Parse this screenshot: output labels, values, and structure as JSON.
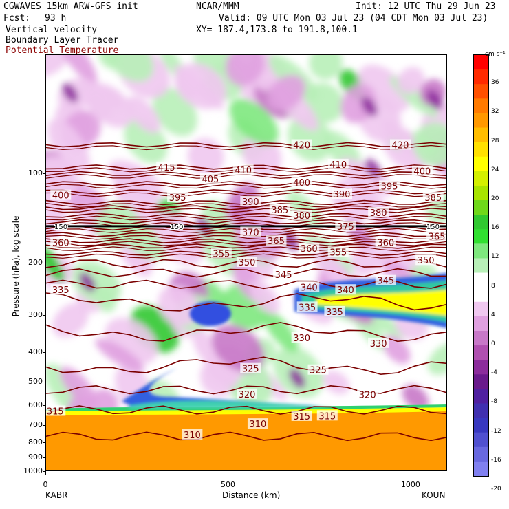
{
  "header": {
    "model": "CGWAVES 15km ARW-GFS init",
    "org": "NCAR/MMM",
    "init": "Init: 12 UTC Thu 29 Jun 23",
    "fcst_label": "Fcst:",
    "fcst_value": "93 h",
    "valid": "Valid: 09 UTC Mon 03 Jul 23 (04 CDT Mon 03 Jul 23)",
    "xy": "XY= 187.4,173.8 to 191.8,100.1"
  },
  "legend_lines": [
    {
      "label": "Vertical velocity",
      "color": "#000000"
    },
    {
      "label": "Boundary Layer Tracer",
      "color": "#000000"
    },
    {
      "label": "Potential Temperature",
      "color": "#8b0000"
    }
  ],
  "chart_data": {
    "type": "heatmap",
    "ylabel": "Pressure (hPa), log scale",
    "xlabel": "Distance (km)",
    "x_range": [
      0,
      1100
    ],
    "y_range_hPa": [
      1000,
      40
    ],
    "y_ticks": [
      100,
      200,
      300,
      400,
      500,
      600,
      700,
      800,
      900,
      1000
    ],
    "x_ticks": [
      0,
      500,
      1000
    ],
    "x_endpoints": {
      "left": "KABR",
      "right": "KOUN"
    },
    "bold_line_label": "150",
    "colorbar": {
      "units": "cm s⁻¹",
      "ticks": [
        "36",
        "32",
        "28",
        "24",
        "20",
        "16",
        "12",
        "8",
        "4",
        "0",
        "-4",
        "-8",
        "-12",
        "-16",
        "-20"
      ],
      "colors": [
        "#ff0000",
        "#ff2a00",
        "#ff5000",
        "#ff7a00",
        "#ff9800",
        "#ffbd00",
        "#ffe000",
        "#ffff00",
        "#d4f000",
        "#a8e400",
        "#6fd81a",
        "#30c830",
        "#30e030",
        "#7ee87e",
        "#b8f0b8",
        "#ffffff",
        "#ffffff",
        "#f0c8f0",
        "#e0a0e0",
        "#c878c8",
        "#b050b0",
        "#8c2c9c",
        "#6a1a8c",
        "#5020a0",
        "#4030b0",
        "#3838c0",
        "#5050d0",
        "#6868e0",
        "#8080f0"
      ]
    },
    "theta_contours": [
      {
        "label": "420",
        "p": 80
      },
      {
        "label": "415",
        "p": 95
      },
      {
        "label": "410",
        "p": 100
      },
      {
        "label": "405",
        "p": 108
      },
      {
        "label": "400",
        "p": 115
      },
      {
        "label": "395",
        "p": 125
      },
      {
        "label": "390",
        "p": 130
      },
      {
        "label": "385",
        "p": 138
      },
      {
        "label": "380",
        "p": 145
      },
      {
        "label": "375",
        "p": 152
      },
      {
        "label": "370",
        "p": 160
      },
      {
        "label": "365",
        "p": 168
      },
      {
        "label": "360",
        "p": 175
      },
      {
        "label": "355",
        "p": 185
      },
      {
        "label": "350",
        "p": 200
      },
      {
        "label": "345",
        "p": 215
      },
      {
        "label": "340",
        "p": 235
      },
      {
        "label": "335",
        "p": 270
      },
      {
        "label": "330",
        "p": 340
      },
      {
        "label": "325",
        "p": 440
      },
      {
        "label": "320",
        "p": 530
      },
      {
        "label": "315",
        "p": 620
      },
      {
        "label": "310",
        "p": 760
      }
    ],
    "contour_labels": [
      {
        "text": "420",
        "x": 700,
        "p": 80
      },
      {
        "text": "420",
        "x": 970,
        "p": 80
      },
      {
        "text": "415",
        "x": 330,
        "p": 95
      },
      {
        "text": "410",
        "x": 540,
        "p": 97
      },
      {
        "text": "410",
        "x": 800,
        "p": 93
      },
      {
        "text": "405",
        "x": 450,
        "p": 104
      },
      {
        "text": "400",
        "x": 40,
        "p": 118
      },
      {
        "text": "400",
        "x": 700,
        "p": 107
      },
      {
        "text": "400",
        "x": 1030,
        "p": 98
      },
      {
        "text": "395",
        "x": 360,
        "p": 120
      },
      {
        "text": "395",
        "x": 940,
        "p": 110
      },
      {
        "text": "390",
        "x": 560,
        "p": 124
      },
      {
        "text": "390",
        "x": 810,
        "p": 117
      },
      {
        "text": "385",
        "x": 640,
        "p": 132
      },
      {
        "text": "385",
        "x": 1060,
        "p": 120
      },
      {
        "text": "380",
        "x": 700,
        "p": 138
      },
      {
        "text": "380",
        "x": 910,
        "p": 135
      },
      {
        "text": "375",
        "x": 820,
        "p": 150
      },
      {
        "text": "370",
        "x": 560,
        "p": 157
      },
      {
        "text": "365",
        "x": 630,
        "p": 168
      },
      {
        "text": "365",
        "x": 1070,
        "p": 162
      },
      {
        "text": "360",
        "x": 40,
        "p": 170
      },
      {
        "text": "360",
        "x": 720,
        "p": 178
      },
      {
        "text": "360",
        "x": 930,
        "p": 170
      },
      {
        "text": "355",
        "x": 480,
        "p": 185
      },
      {
        "text": "355",
        "x": 800,
        "p": 183
      },
      {
        "text": "350",
        "x": 550,
        "p": 198
      },
      {
        "text": "350",
        "x": 1040,
        "p": 195
      },
      {
        "text": "345",
        "x": 650,
        "p": 218
      },
      {
        "text": "345",
        "x": 930,
        "p": 228
      },
      {
        "text": "340",
        "x": 720,
        "p": 240
      },
      {
        "text": "340",
        "x": 820,
        "p": 245
      },
      {
        "text": "335",
        "x": 40,
        "p": 245
      },
      {
        "text": "335",
        "x": 715,
        "p": 280
      },
      {
        "text": "335",
        "x": 790,
        "p": 290
      },
      {
        "text": "330",
        "x": 700,
        "p": 355
      },
      {
        "text": "330",
        "x": 910,
        "p": 370
      },
      {
        "text": "325",
        "x": 560,
        "p": 450
      },
      {
        "text": "325",
        "x": 745,
        "p": 455
      },
      {
        "text": "320",
        "x": 550,
        "p": 548
      },
      {
        "text": "320",
        "x": 880,
        "p": 550
      },
      {
        "text": "315",
        "x": 25,
        "p": 625
      },
      {
        "text": "315",
        "x": 700,
        "p": 650
      },
      {
        "text": "315",
        "x": 770,
        "p": 648
      },
      {
        "text": "310",
        "x": 400,
        "p": 750
      },
      {
        "text": "310",
        "x": 580,
        "p": 690
      }
    ]
  }
}
